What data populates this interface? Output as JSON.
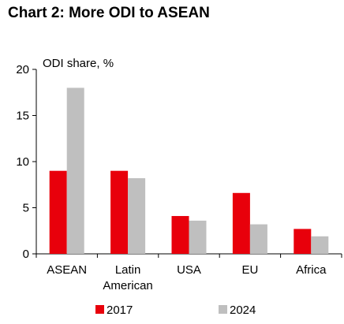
{
  "chart_data": {
    "type": "bar",
    "title": "Chart 2: More ODI to ASEAN",
    "ylabel": "ODI share, %",
    "xlabel": "",
    "categories": [
      "ASEAN",
      "Latin\nAmerican",
      "USA",
      "EU",
      "Africa"
    ],
    "series": [
      {
        "name": "2017",
        "color": "#e8000b",
        "values": [
          9.0,
          9.0,
          4.1,
          6.6,
          2.7
        ]
      },
      {
        "name": "2024",
        "color": "#bfbfbf",
        "values": [
          18.0,
          8.2,
          3.6,
          3.2,
          1.9
        ]
      }
    ],
    "ylim": [
      0,
      20
    ],
    "yticks": [
      0,
      5,
      10,
      15,
      20
    ],
    "grid": false,
    "legend_position": "bottom"
  }
}
